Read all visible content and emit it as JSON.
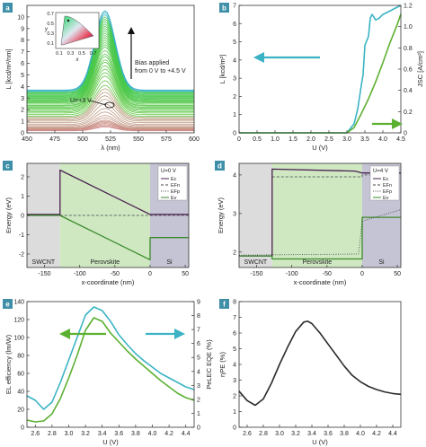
{
  "chart_data": [
    {
      "panel": "a",
      "type": "line",
      "xlabel": "λ (nm)",
      "ylabel": "L [kcd/m²/nm]",
      "xlim": [
        450,
        600
      ],
      "ylim": [
        0,
        11
      ],
      "xticks": [
        "450",
        "475",
        "500",
        "525",
        "550",
        "575",
        "600"
      ],
      "yticks": [
        "0",
        "1",
        "2",
        "3",
        "4",
        "5",
        "6",
        "7",
        "8",
        "9",
        "10"
      ],
      "peak_nm": 520,
      "fwhm_nm": 22,
      "series": [
        {
          "values": [
            0.5,
            0.6,
            0.7,
            0.8,
            0.9,
            1.0,
            1.1,
            1.3,
            1.5,
            1.8,
            2.1,
            2.5,
            2.9,
            3.2,
            3.5,
            3.8,
            4.1,
            4.5,
            4.9,
            5.2,
            5.5,
            5.8,
            6.1,
            6.3,
            6.6,
            6.8,
            7.1,
            7.4,
            7.6,
            7.8,
            8.0,
            8.2,
            8.4,
            8.6,
            8.8,
            9.0,
            9.2,
            9.4,
            9.6,
            9.8,
            10.0,
            10.2,
            10.4,
            10.55
          ]
        }
      ],
      "annotations": {
        "bias": "Bias applied\nfrom 0 V to +4.5 V",
        "u_label": "U=+3 V",
        "inset_x": "x",
        "inset_y": "y",
        "inset_xticks": [
          "0.1",
          "0.3",
          "0.5",
          "0.7"
        ],
        "inset_yticks": [
          "0.1",
          "0.3",
          "0.5",
          "0.7"
        ]
      }
    },
    {
      "panel": "b",
      "type": "line",
      "xlabel": "U (V)",
      "ylabel_left": "L [kcd/m²]",
      "ylabel_right": "JSC [A/cm²]",
      "xlim": [
        0,
        4.5
      ],
      "ylim_left": [
        0,
        7
      ],
      "ylim_right": [
        0,
        1.2
      ],
      "xticks": [
        "0",
        "0.5",
        "1.0",
        "1.5",
        "2.0",
        "2.5",
        "3.0",
        "3.5",
        "4.0",
        "4.5"
      ],
      "yticks_left": [
        "0",
        "1",
        "2",
        "3",
        "4",
        "5",
        "6",
        "7"
      ],
      "yticks_right": [
        "0",
        "0.2",
        "0.4",
        "0.6",
        "0.8",
        "1.0",
        "1.2"
      ],
      "series": [
        {
          "color": "#3bb3c4",
          "axis": "left",
          "x": [
            0,
            3.0,
            3.2,
            3.3,
            3.4,
            3.45,
            3.5,
            3.6,
            3.65,
            3.7,
            3.8,
            3.9,
            4.0,
            4.2,
            4.4,
            4.5
          ],
          "y": [
            0,
            0,
            0.5,
            1.3,
            2.6,
            3.2,
            4.8,
            5.3,
            6.3,
            6.5,
            6.2,
            6.3,
            6.5,
            6.7,
            6.9,
            7.0
          ]
        },
        {
          "color": "#5cb030",
          "axis": "right",
          "x": [
            0,
            3.0,
            3.2,
            3.4,
            3.6,
            3.8,
            4.0,
            4.2,
            4.4,
            4.5
          ],
          "y": [
            0,
            0,
            0.05,
            0.18,
            0.32,
            0.48,
            0.66,
            0.85,
            1.02,
            1.12
          ]
        }
      ]
    },
    {
      "panel": "c",
      "type": "line",
      "xlabel": "x-coordinate (nm)",
      "ylabel": "Energy (eV)",
      "xlim": [
        -175,
        55
      ],
      "ylim": [
        -2.7,
        2.7
      ],
      "xticks": [
        "-150",
        "-100",
        "-50",
        "0",
        "50"
      ],
      "yticks": [
        "-2",
        "-1",
        "0",
        "1",
        "2"
      ],
      "regions": [
        "SWCNT",
        "Perovskite",
        "Si"
      ],
      "legend_title": "U=0 V",
      "legend": [
        "Ec",
        "EFn",
        "EFp",
        "Ev"
      ],
      "series": [
        {
          "name": "Ec",
          "color": "#4a2050",
          "x": [
            -175,
            -128,
            -128,
            0,
            0,
            55
          ],
          "y": [
            0.05,
            0.05,
            2.35,
            0.05,
            0.05,
            0.05
          ]
        },
        {
          "name": "Ev",
          "color": "#3a8a2a",
          "x": [
            -175,
            -128,
            -128,
            0,
            0,
            0,
            55
          ],
          "y": [
            0.0,
            0.0,
            0.0,
            -2.3,
            -2.3,
            -1.15,
            -1.15
          ]
        }
      ]
    },
    {
      "panel": "d",
      "type": "line",
      "xlabel": "x-coordinate (nm)",
      "ylabel": "Energy (eV)",
      "xlim": [
        -175,
        55
      ],
      "ylim": [
        1.6,
        4.3
      ],
      "xticks": [
        "-150",
        "-100",
        "-50",
        "0",
        "50"
      ],
      "yticks": [
        "2",
        "3",
        "4"
      ],
      "regions": [
        "SWCNT",
        "Perovskite",
        "Si"
      ],
      "legend_title": "U=4 V",
      "legend": [
        "Ec",
        "EFn",
        "EFp",
        "Ev"
      ],
      "series": [
        {
          "name": "Ec",
          "color": "#4a2050",
          "x": [
            -175,
            -128,
            -128,
            -10,
            0,
            0,
            55
          ],
          "y": [
            1.9,
            1.9,
            4.15,
            4.1,
            4.05,
            4.05,
            4.05
          ]
        },
        {
          "name": "Ev",
          "color": "#3a8a2a",
          "x": [
            -175,
            -128,
            -128,
            0,
            0,
            55
          ],
          "y": [
            1.9,
            1.9,
            1.82,
            1.82,
            2.9,
            2.9
          ]
        }
      ]
    },
    {
      "panel": "e",
      "type": "line",
      "xlabel": "U (V)",
      "ylabel_left": "EL efficiency (lm/W)",
      "ylabel_right": "PeLEC EQE (%)",
      "xlim": [
        2.5,
        4.5
      ],
      "ylim_left": [
        0,
        140
      ],
      "ylim_right": [
        0,
        9
      ],
      "xticks": [
        "2.6",
        "2.8",
        "3.0",
        "3.2",
        "3.4",
        "3.6",
        "3.8",
        "4.0",
        "4.2",
        "4.4"
      ],
      "yticks_left": [
        "0",
        "20",
        "40",
        "60",
        "80",
        "100",
        "120",
        "140"
      ],
      "yticks_right": [
        "0",
        "1",
        "2",
        "3",
        "4",
        "5",
        "6",
        "7",
        "8",
        "9"
      ],
      "series": [
        {
          "color": "#3bb3c4",
          "x": [
            2.5,
            2.6,
            2.7,
            2.8,
            2.9,
            3.0,
            3.1,
            3.2,
            3.3,
            3.4,
            3.5,
            3.6,
            3.7,
            3.8,
            3.9,
            4.0,
            4.1,
            4.2,
            4.3,
            4.4,
            4.5
          ],
          "y": [
            35,
            30,
            20,
            28,
            50,
            75,
            100,
            125,
            134,
            130,
            118,
            103,
            92,
            82,
            74,
            67,
            60,
            55,
            50,
            45,
            42
          ]
        },
        {
          "color": "#5cb030",
          "x": [
            2.5,
            2.6,
            2.7,
            2.8,
            2.9,
            3.0,
            3.1,
            3.2,
            3.3,
            3.4,
            3.5,
            3.6,
            3.7,
            3.8,
            3.9,
            4.0,
            4.1,
            4.2,
            4.3,
            4.4,
            4.5
          ],
          "y": [
            8,
            6,
            7,
            15,
            32,
            55,
            80,
            108,
            122,
            118,
            105,
            95,
            85,
            76,
            68,
            60,
            52,
            45,
            38,
            33,
            30
          ]
        }
      ]
    },
    {
      "panel": "f",
      "type": "line",
      "xlabel": "U (V)",
      "ylabel": "ηPE (%)",
      "xlim": [
        2.5,
        4.5
      ],
      "ylim": [
        0,
        8
      ],
      "xticks": [
        "2.6",
        "2.8",
        "3.0",
        "3.2",
        "3.4",
        "3.6",
        "3.8",
        "4.0",
        "4.2",
        "4.4"
      ],
      "yticks": [
        "0",
        "1",
        "2",
        "3",
        "4",
        "5",
        "6",
        "7",
        "8"
      ],
      "series": [
        {
          "color": "#2b2b2b",
          "x": [
            2.5,
            2.6,
            2.7,
            2.8,
            2.9,
            3.0,
            3.1,
            3.2,
            3.3,
            3.35,
            3.4,
            3.5,
            3.6,
            3.7,
            3.8,
            3.9,
            4.0,
            4.1,
            4.2,
            4.3,
            4.4,
            4.5
          ],
          "y": [
            2.3,
            1.7,
            1.4,
            1.8,
            2.8,
            4.0,
            5.1,
            6.1,
            6.7,
            6.75,
            6.6,
            6.0,
            5.3,
            4.6,
            3.9,
            3.3,
            2.9,
            2.6,
            2.4,
            2.25,
            2.15,
            2.1
          ]
        }
      ]
    }
  ],
  "labels": {
    "panel_a": "a",
    "panel_b": "b",
    "panel_c": "c",
    "panel_d": "d",
    "panel_e": "e",
    "panel_f": "f"
  },
  "colors": {
    "badge": "#3f8fa8",
    "cyan": "#3bb3c4",
    "green": "#5cb030",
    "dark_green": "#3a8a2a",
    "purple": "#4a2050",
    "swcnt_fill": "#dcdcdc",
    "perov_fill": "#cfe8c2",
    "si_fill": "#c4c4d4"
  }
}
